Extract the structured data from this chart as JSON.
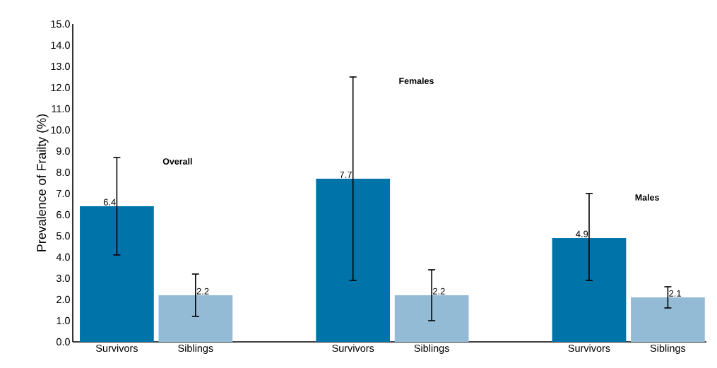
{
  "chart_data": {
    "type": "bar",
    "ylabel": "Prevalence of Frailty (%)",
    "categories": [
      "Survivors",
      "Siblings",
      "Survivors",
      "Siblings",
      "Survivors",
      "Siblings"
    ],
    "values": [
      6.4,
      2.2,
      7.7,
      2.2,
      4.9,
      2.1
    ],
    "colors": [
      "#0073a8",
      "#94bbd6",
      "#0073a8",
      "#94bbd6",
      "#0073a8",
      "#94bbd6"
    ],
    "errors": [
      [
        4.1,
        8.7
      ],
      [
        1.2,
        3.2
      ],
      [
        2.9,
        12.5
      ],
      [
        1.0,
        3.4
      ],
      [
        2.9,
        7.0
      ],
      [
        1.6,
        2.6
      ]
    ],
    "data_labels": true,
    "annotations": [
      "Overall",
      "Females",
      "Males"
    ],
    "ylim": [
      0,
      15
    ],
    "yticks": [
      {
        "value": 0,
        "label": "0.0"
      },
      {
        "value": 1,
        "label": "1.0"
      },
      {
        "value": 2,
        "label": "2.0"
      },
      {
        "value": 3,
        "label": "3.0"
      },
      {
        "value": 4,
        "label": "4.0"
      },
      {
        "value": 5,
        "label": "5.0"
      },
      {
        "value": 6,
        "label": "6.0"
      },
      {
        "value": 7,
        "label": "7.0"
      },
      {
        "value": 8,
        "label": "8.0"
      },
      {
        "value": 9,
        "label": "9.0"
      },
      {
        "value": 10,
        "label": "10.0"
      },
      {
        "value": 11,
        "label": "11.0"
      },
      {
        "value": 12,
        "label": "12.0"
      },
      {
        "value": 13,
        "label": "13.0"
      },
      {
        "value": 14,
        "label": "14.0"
      },
      {
        "value": 15,
        "label": "15.0"
      }
    ],
    "grid": false
  }
}
